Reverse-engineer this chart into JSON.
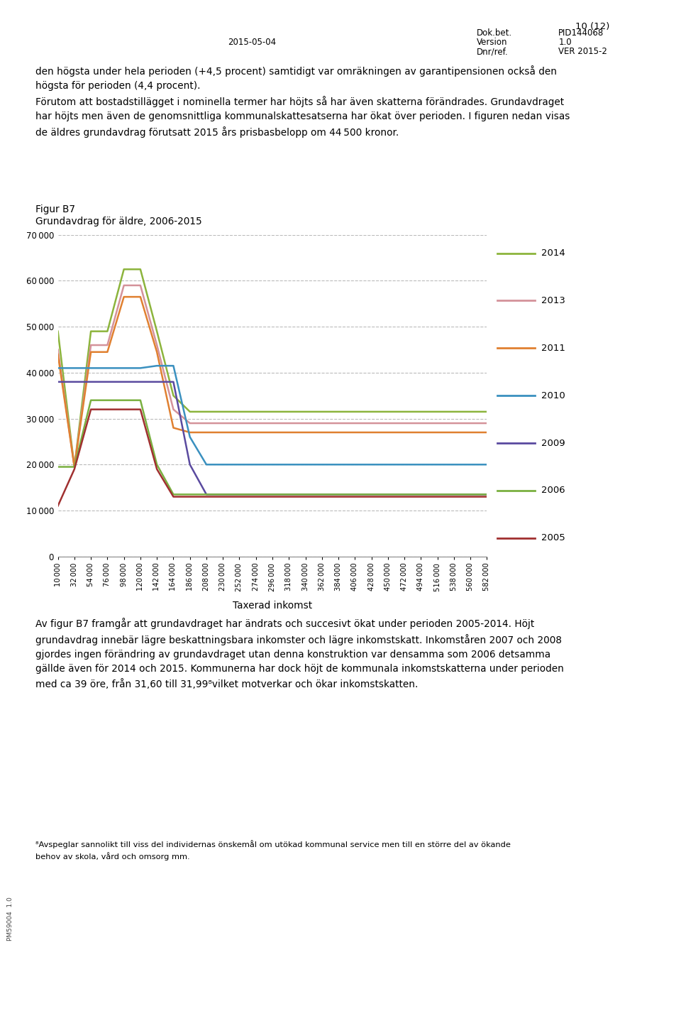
{
  "title_line1": "Figur B7",
  "title_line2": "Grundavdrag för äldre, 2006-2015",
  "xlabel": "Taxerad inkomst",
  "header_date": "2015-05-04",
  "header_doc": "Dok.bet.",
  "header_pid": "PID144068",
  "header_version": "Version",
  "header_ver": "1.0",
  "header_dnr": "Dnr/ref.",
  "header_ver2": "VER 2015-2",
  "header_page": "10 (12)",
  "x_values": [
    10000,
    32000,
    54000,
    76000,
    98000,
    120000,
    142000,
    164000,
    186000,
    208000,
    230000,
    252000,
    274000,
    296000,
    318000,
    340000,
    362000,
    384000,
    406000,
    428000,
    450000,
    472000,
    494000,
    516000,
    538000,
    560000,
    582000
  ],
  "series": {
    "2014": {
      "color": "#8cb43c",
      "values": [
        49000,
        19500,
        49000,
        49000,
        62500,
        62500,
        49000,
        35000,
        31500,
        31500,
        31500,
        31500,
        31500,
        31500,
        31500,
        31500,
        31500,
        31500,
        31500,
        31500,
        31500,
        31500,
        31500,
        31500,
        31500,
        31500,
        31500
      ]
    },
    "2013": {
      "color": "#d4929a",
      "values": [
        45000,
        19500,
        46000,
        46000,
        59000,
        59000,
        46000,
        32000,
        29000,
        29000,
        29000,
        29000,
        29000,
        29000,
        29000,
        29000,
        29000,
        29000,
        29000,
        29000,
        29000,
        29000,
        29000,
        29000,
        29000,
        29000,
        29000
      ]
    },
    "2011": {
      "color": "#e08030",
      "values": [
        44000,
        19500,
        44500,
        44500,
        56500,
        56500,
        44500,
        28000,
        27000,
        27000,
        27000,
        27000,
        27000,
        27000,
        27000,
        27000,
        27000,
        27000,
        27000,
        27000,
        27000,
        27000,
        27000,
        27000,
        27000,
        27000,
        27000
      ]
    },
    "2010": {
      "color": "#3a90bf",
      "values": [
        41000,
        41000,
        41000,
        41000,
        41000,
        41000,
        41500,
        41500,
        26000,
        20000,
        20000,
        20000,
        20000,
        20000,
        20000,
        20000,
        20000,
        20000,
        20000,
        20000,
        20000,
        20000,
        20000,
        20000,
        20000,
        20000,
        20000
      ]
    },
    "2009": {
      "color": "#5a4a9f",
      "values": [
        38000,
        38000,
        38000,
        38000,
        38000,
        38000,
        38000,
        38000,
        20000,
        13500,
        13500,
        13500,
        13500,
        13500,
        13500,
        13500,
        13500,
        13500,
        13500,
        13500,
        13500,
        13500,
        13500,
        13500,
        13500,
        13500,
        13500
      ]
    },
    "2006": {
      "color": "#7ab040",
      "values": [
        19500,
        19500,
        34000,
        34000,
        34000,
        34000,
        20000,
        13500,
        13500,
        13500,
        13500,
        13500,
        13500,
        13500,
        13500,
        13500,
        13500,
        13500,
        13500,
        13500,
        13500,
        13500,
        13500,
        13500,
        13500,
        13500,
        13500
      ]
    },
    "2005": {
      "color": "#a03030",
      "values": [
        11000,
        19000,
        32000,
        32000,
        32000,
        32000,
        19000,
        13000,
        13000,
        13000,
        13000,
        13000,
        13000,
        13000,
        13000,
        13000,
        13000,
        13000,
        13000,
        13000,
        13000,
        13000,
        13000,
        13000,
        13000,
        13000,
        13000
      ]
    }
  },
  "legend_order": [
    "2014",
    "2013",
    "2011",
    "2010",
    "2009",
    "2006",
    "2005"
  ],
  "ylim": [
    0,
    70000
  ],
  "yticks": [
    0,
    10000,
    20000,
    30000,
    40000,
    50000,
    60000,
    70000
  ]
}
